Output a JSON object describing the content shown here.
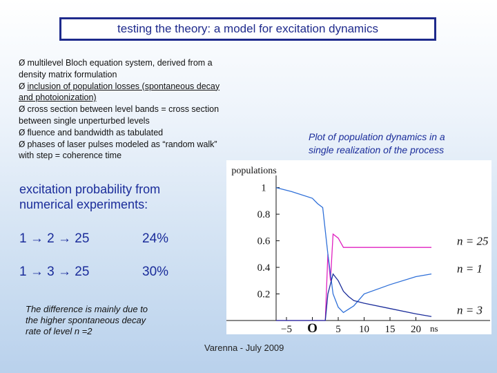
{
  "title": "testing the theory: a model for excitation dynamics",
  "bullets": {
    "b1_a": "multilevel Bloch equation system, derived from a",
    "b1_b": "density matrix formulation",
    "b2_a": "inclusion of population losses (spontaneous decay",
    "b2_b": "and photoionization)",
    "b3_a": "cross section between level bands = cross section",
    "b3_b": "between single unperturbed levels",
    "b4": "fluence and bandwidth as tabulated",
    "b5_a": "phases of laser pulses modeled as “random walk”",
    "b5_b": "with step = coherence time",
    "arrow_glyph": "Ø"
  },
  "caption": {
    "line1": "Plot of population dynamics in a",
    "line2": "single realization of the process"
  },
  "excitation": {
    "line1": "excitation probability from",
    "line2": "numerical experiments:",
    "rows": [
      {
        "path": "1 → 2 → 25",
        "percent": "24%"
      },
      {
        "path": "1 → 3 → 25",
        "percent": "30%"
      }
    ]
  },
  "note": {
    "line1": "The difference is mainly due to",
    "line2": "the higher spontaneous  decay",
    "line3": "rate of level n =2"
  },
  "footer": "Varenna - July 2009",
  "chart_data": {
    "type": "line",
    "ylabel": "populations",
    "xunit": "ns",
    "xlim": [
      -7,
      25
    ],
    "ylim": [
      0,
      1.05
    ],
    "x_ticks": [
      "−5",
      "O",
      "5",
      "10",
      "15",
      "20"
    ],
    "y_ticks": [
      "1",
      "0.8",
      "0.6",
      "0.4",
      "0.2"
    ],
    "series": [
      {
        "name": "n = 25",
        "color": "#e020c0",
        "x": [
          -7,
          2.5,
          3,
          3.5,
          4,
          5,
          6,
          7,
          8,
          23
        ],
        "y": [
          0,
          0,
          0.5,
          0.3,
          0.65,
          0.62,
          0.55,
          0.55,
          0.55,
          0.55
        ]
      },
      {
        "name": "n = 1",
        "color": "#2e6fd8",
        "x": [
          -7,
          -4,
          0,
          1,
          2,
          3,
          4,
          5,
          6,
          8,
          10,
          15,
          20,
          23
        ],
        "y": [
          1,
          0.97,
          0.92,
          0.88,
          0.85,
          0.5,
          0.2,
          0.1,
          0.06,
          0.11,
          0.2,
          0.27,
          0.33,
          0.35
        ]
      },
      {
        "name": "n = 3",
        "color": "#1a2c9a",
        "x": [
          -7,
          2.5,
          3,
          4,
          5,
          6,
          7,
          8,
          10,
          15,
          20,
          23
        ],
        "y": [
          0,
          0,
          0.2,
          0.35,
          0.3,
          0.22,
          0.18,
          0.15,
          0.13,
          0.09,
          0.05,
          0.03
        ]
      }
    ]
  }
}
